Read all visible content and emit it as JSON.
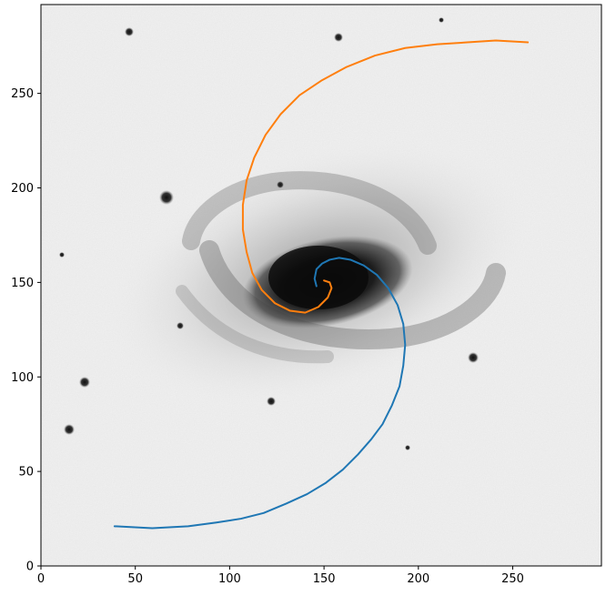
{
  "chart_data": {
    "type": "line",
    "title": "",
    "xlabel": "",
    "ylabel": "",
    "xlim": [
      0,
      297
    ],
    "ylim": [
      0,
      297
    ],
    "x_ticks": [
      0,
      50,
      100,
      150,
      200,
      250
    ],
    "y_ticks": [
      0,
      50,
      100,
      150,
      200,
      250
    ],
    "x_tick_labels": [
      "0",
      "50",
      "100",
      "150",
      "200",
      "250"
    ],
    "y_tick_labels": [
      "0",
      "50",
      "100",
      "150",
      "200",
      "250"
    ],
    "grid": false,
    "legend": "none",
    "background": "grayscale image of a barred spiral galaxy (dark core near x≈160, y≈150)",
    "series": [
      {
        "color": "#1f77b4",
        "x": [
          146,
          145,
          146,
          149,
          153,
          158,
          164,
          171,
          178,
          184,
          189,
          192,
          193,
          192,
          190,
          186,
          181,
          175,
          168,
          160,
          151,
          141,
          130,
          118,
          106,
          93,
          78,
          59,
          39
        ],
        "y": [
          148,
          152,
          157,
          160,
          162,
          163,
          162,
          159,
          154,
          147,
          138,
          128,
          117,
          106,
          95,
          85,
          75,
          67,
          59,
          51,
          44,
          38,
          33,
          28,
          25,
          23,
          21,
          20,
          21
        ]
      },
      {
        "color": "#ff7f0e",
        "x": [
          150,
          153,
          154,
          152,
          147,
          140,
          132,
          124,
          117,
          112,
          109,
          107,
          107,
          109,
          113,
          119,
          127,
          137,
          149,
          162,
          177,
          193,
          210,
          226,
          241,
          258
        ],
        "y": [
          151,
          150,
          147,
          142,
          137,
          134,
          135,
          139,
          146,
          155,
          166,
          178,
          191,
          204,
          216,
          228,
          239,
          249,
          257,
          264,
          270,
          274,
          276,
          277,
          278,
          277
        ]
      }
    ]
  }
}
